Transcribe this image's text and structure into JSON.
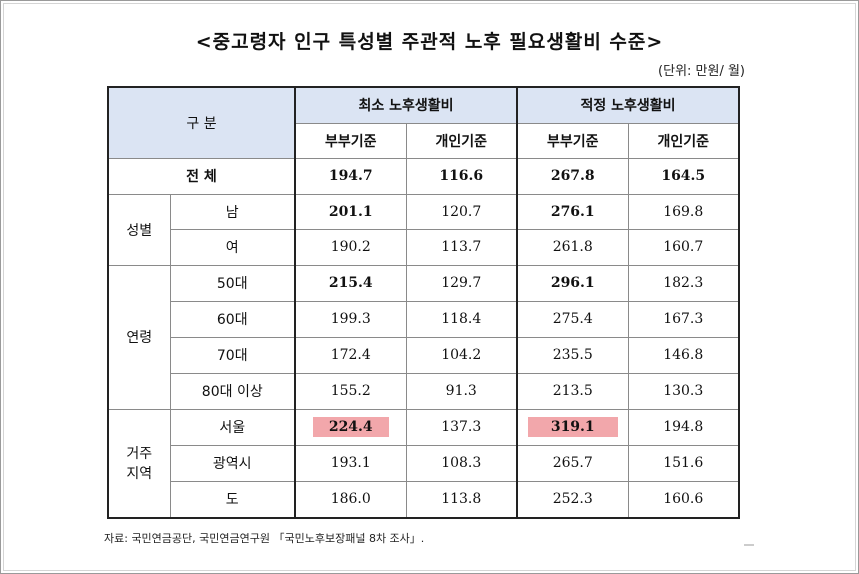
{
  "title": "<중고령자 인구 특성별 주관적 노후 필요생활비 수준>",
  "unit": "(단위: 만원/ 월)",
  "header": {
    "category": "구 분",
    "min": "최소 노후생활비",
    "proper": "적정 노후생활비",
    "couple": "부부기준",
    "individual": "개인기준"
  },
  "total": {
    "label": "전 체",
    "values": [
      "194.7",
      "116.6",
      "267.8",
      "164.5"
    ]
  },
  "groups": {
    "gender": {
      "label": "성별",
      "rows": [
        {
          "label": "남",
          "values": [
            "201.1",
            "120.7",
            "276.1",
            "169.8"
          ]
        },
        {
          "label": "여",
          "values": [
            "190.2",
            "113.7",
            "261.8",
            "160.7"
          ]
        }
      ]
    },
    "age": {
      "label": "연령",
      "rows": [
        {
          "label": "50대",
          "values": [
            "215.4",
            "129.7",
            "296.1",
            "182.3"
          ]
        },
        {
          "label": "60대",
          "values": [
            "199.3",
            "118.4",
            "275.4",
            "167.3"
          ]
        },
        {
          "label": "70대",
          "values": [
            "172.4",
            "104.2",
            "235.5",
            "146.8"
          ]
        },
        {
          "label": "80대 이상",
          "values": [
            "155.2",
            "91.3",
            "213.5",
            "130.3"
          ]
        }
      ]
    },
    "region": {
      "label1": "거주",
      "label2": "지역",
      "rows": [
        {
          "label": "서울",
          "values": [
            "224.4",
            "137.3",
            "319.1",
            "194.8"
          ]
        },
        {
          "label": "광역시",
          "values": [
            "193.1",
            "108.3",
            "265.7",
            "151.6"
          ]
        },
        {
          "label": "도",
          "values": [
            "186.0",
            "113.8",
            "252.3",
            "160.6"
          ]
        }
      ]
    }
  },
  "highlight_color": "#f2a7ab",
  "header_color": "#dbe4f3",
  "source": "자료:  국민연금공단, 국민연금연구원 「국민노후보장패널 8차 조사」."
}
